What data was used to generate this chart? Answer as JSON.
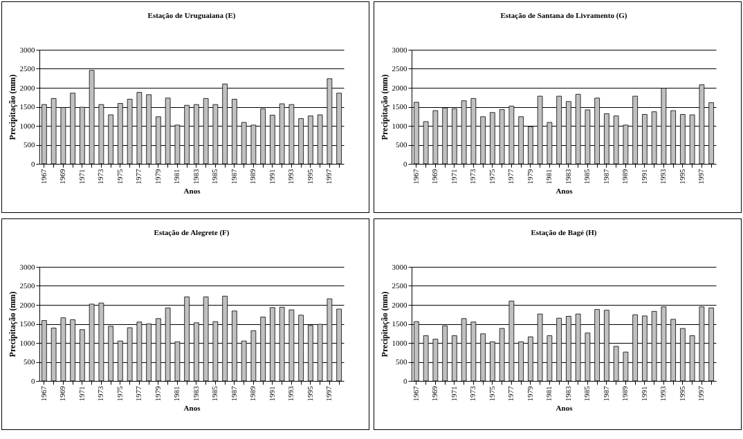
{
  "chart_data": [
    {
      "type": "bar",
      "title": "Estação de Uruguaiana (E)",
      "xlabel": "Anos",
      "ylabel": "Precipitação (mm)",
      "categories": [
        "1967",
        null,
        "1969",
        null,
        "1971",
        null,
        "1973",
        null,
        "1975",
        null,
        "1977",
        null,
        "1979",
        null,
        "1981",
        null,
        "1983",
        null,
        "1985",
        null,
        "1987",
        null,
        "1989",
        null,
        "1991",
        null,
        "1993",
        null,
        "1995",
        null,
        "1997",
        null
      ],
      "series": [
        {
          "color": "#c0c0c0",
          "values": [
            1560,
            1720,
            1480,
            1860,
            1490,
            2460,
            1560,
            1290,
            1590,
            1700,
            1880,
            1820,
            1240,
            1730,
            1020,
            1540,
            1560,
            1720,
            1560,
            2100,
            1700,
            1090,
            1020,
            1450,
            1280,
            1580,
            1560,
            1190,
            1260,
            1290,
            2240,
            1860
          ]
        }
      ],
      "ylim": [
        0,
        3000
      ],
      "yticks": [
        0,
        500,
        1000,
        1500,
        2000,
        2500,
        3000
      ],
      "grid": "y"
    },
    {
      "type": "bar",
      "title": "Estação de Santana do Livramento (G)",
      "xlabel": "Anos",
      "ylabel": "Precipitação (mm)",
      "categories": [
        "1967",
        null,
        "1969",
        null,
        "1971",
        null,
        "1973",
        null,
        "1975",
        null,
        "1977",
        null,
        "1979",
        null,
        "1981",
        null,
        "1983",
        null,
        "1985",
        null,
        "1987",
        null,
        "1989",
        null,
        "1991",
        null,
        "1993",
        null,
        "1995",
        null,
        "1997",
        null
      ],
      "series": [
        {
          "color": "#c0c0c0",
          "values": [
            1620,
            1110,
            1400,
            1470,
            1450,
            1660,
            1720,
            1240,
            1350,
            1430,
            1520,
            1240,
            980,
            1780,
            1090,
            1780,
            1640,
            1830,
            1420,
            1730,
            1320,
            1260,
            1020,
            1780,
            1300,
            1370,
            1990,
            1400,
            1300,
            1290,
            2080,
            1610
          ]
        }
      ],
      "ylim": [
        0,
        3000
      ],
      "yticks": [
        0,
        500,
        1000,
        1500,
        2000,
        2500,
        3000
      ],
      "grid": "y"
    },
    {
      "type": "bar",
      "title": "Estação de Alegrete (F)",
      "xlabel": "Anos",
      "ylabel": "Precipitação (mm)",
      "categories": [
        "1967",
        null,
        "1969",
        null,
        "1971",
        null,
        "1973",
        null,
        "1975",
        null,
        "1977",
        null,
        "1979",
        null,
        "1981",
        null,
        "1983",
        null,
        "1985",
        null,
        "1987",
        null,
        "1989",
        null,
        "1991",
        null,
        "1993",
        null,
        "1995",
        null,
        "1997",
        null
      ],
      "series": [
        {
          "color": "#c0c0c0",
          "values": [
            1590,
            1390,
            1660,
            1610,
            1350,
            2020,
            2050,
            1440,
            1050,
            1400,
            1550,
            1500,
            1640,
            1920,
            1030,
            2210,
            1530,
            2210,
            1560,
            2230,
            1840,
            1050,
            1320,
            1680,
            1930,
            1940,
            1870,
            1730,
            1460,
            1490,
            2160,
            1890
          ]
        }
      ],
      "ylim": [
        0,
        3000
      ],
      "yticks": [
        0,
        500,
        1000,
        1500,
        2000,
        2500,
        3000
      ],
      "grid": "y"
    },
    {
      "type": "bar",
      "title": "Estação de Bagé (H)",
      "xlabel": "Anos",
      "ylabel": "Precipitação (mm)",
      "categories": [
        "1967",
        null,
        "1969",
        null,
        "1971",
        null,
        "1973",
        null,
        "1975",
        null,
        "1977",
        null,
        "1979",
        null,
        "1981",
        null,
        "1983",
        null,
        "1985",
        null,
        "1987",
        null,
        "1989",
        null,
        "1991",
        null,
        "1993",
        null,
        "1995",
        null,
        "1997",
        null
      ],
      "series": [
        {
          "color": "#c0c0c0",
          "values": [
            1560,
            1190,
            1100,
            1450,
            1190,
            1640,
            1550,
            1240,
            1030,
            1380,
            2100,
            1030,
            1160,
            1760,
            1190,
            1650,
            1700,
            1760,
            1260,
            1880,
            1860,
            910,
            760,
            1740,
            1710,
            1830,
            1950,
            1620,
            1380,
            1190,
            1950,
            1920
          ]
        }
      ],
      "ylim": [
        0,
        3000
      ],
      "yticks": [
        0,
        500,
        1000,
        1500,
        2000,
        2500,
        3000
      ],
      "grid": "y"
    }
  ]
}
